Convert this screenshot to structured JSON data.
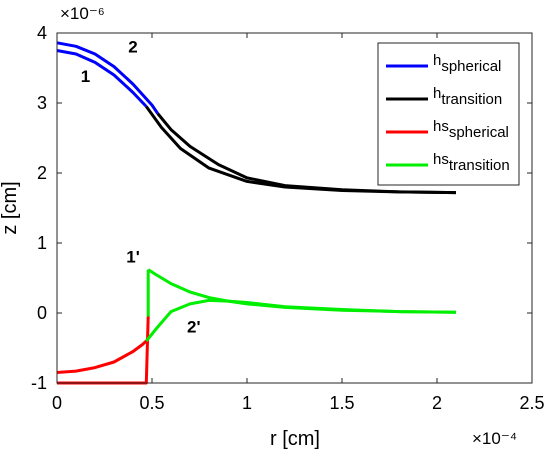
{
  "chart_data": {
    "type": "line",
    "xlabel": "r [cm]",
    "ylabel": "z [cm]",
    "x_exponent": "×10⁻⁴",
    "y_exponent": "×10⁻⁶",
    "xlim": [
      0,
      2.5
    ],
    "ylim": [
      -1,
      4
    ],
    "xticks": [
      "0",
      "0.5",
      "1",
      "1.5",
      "2",
      "2.5"
    ],
    "yticks": [
      "-1",
      "0",
      "1",
      "2",
      "3",
      "4"
    ],
    "grid": false,
    "legend_position": "top-right",
    "series": [
      {
        "name": "spherical",
        "legend_base": "h",
        "legend_sub": "spherical",
        "color": "#0000FF",
        "segments": [
          [
            [
              0,
              3.75
            ],
            [
              0.1,
              3.7
            ],
            [
              0.2,
              3.58
            ],
            [
              0.3,
              3.4
            ],
            [
              0.4,
              3.15
            ],
            [
              0.47,
              2.95
            ]
          ],
          [
            [
              0,
              3.86
            ],
            [
              0.1,
              3.81
            ],
            [
              0.2,
              3.7
            ],
            [
              0.3,
              3.52
            ],
            [
              0.4,
              3.27
            ],
            [
              0.5,
              2.97
            ],
            [
              0.53,
              2.85
            ]
          ]
        ]
      },
      {
        "name": "transition",
        "legend_base": "h",
        "legend_sub": "transition",
        "color": "#000000",
        "segments": [
          [
            [
              0.47,
              2.95
            ],
            [
              0.55,
              2.65
            ],
            [
              0.65,
              2.35
            ],
            [
              0.8,
              2.07
            ],
            [
              1.0,
              1.88
            ],
            [
              1.2,
              1.8
            ],
            [
              1.5,
              1.75
            ],
            [
              1.8,
              1.73
            ],
            [
              2.1,
              1.72
            ]
          ],
          [
            [
              0.53,
              2.85
            ],
            [
              0.6,
              2.62
            ],
            [
              0.7,
              2.38
            ],
            [
              0.85,
              2.12
            ],
            [
              1.0,
              1.93
            ],
            [
              1.2,
              1.82
            ],
            [
              1.5,
              1.76
            ],
            [
              1.8,
              1.73
            ],
            [
              2.1,
              1.72
            ]
          ]
        ]
      },
      {
        "name": "hs spherical",
        "legend_base": "hs",
        "legend_sub": "spherical",
        "color": "#FF0000",
        "segments": [
          [
            [
              0,
              -0.85
            ],
            [
              0.1,
              -0.83
            ],
            [
              0.2,
              -0.78
            ],
            [
              0.3,
              -0.7
            ],
            [
              0.4,
              -0.55
            ],
            [
              0.45,
              -0.45
            ],
            [
              0.47,
              -0.4
            ]
          ],
          [
            [
              0,
              -1.0
            ],
            [
              0.47,
              -1.0
            ],
            [
              0.475,
              -0.5
            ],
            [
              0.48,
              -0.05
            ]
          ]
        ]
      },
      {
        "name": "hs transition",
        "legend_base": "hs",
        "legend_sub": "transition",
        "color": "#00EE00",
        "segments": [
          [
            [
              0.48,
              0.62
            ],
            [
              0.52,
              0.55
            ],
            [
              0.6,
              0.42
            ],
            [
              0.7,
              0.3
            ],
            [
              0.8,
              0.22
            ],
            [
              0.9,
              0.17
            ],
            [
              1.0,
              0.13
            ],
            [
              1.2,
              0.08
            ],
            [
              1.5,
              0.04
            ],
            [
              1.8,
              0.02
            ],
            [
              2.1,
              0.01
            ]
          ],
          [
            [
              0.47,
              -0.4
            ],
            [
              0.53,
              -0.2
            ],
            [
              0.6,
              0.02
            ],
            [
              0.7,
              0.13
            ],
            [
              0.8,
              0.18
            ],
            [
              0.9,
              0.17
            ],
            [
              1.0,
              0.15
            ],
            [
              1.2,
              0.09
            ],
            [
              1.5,
              0.05
            ],
            [
              1.8,
              0.02
            ],
            [
              2.1,
              0.01
            ]
          ],
          [
            [
              0.48,
              -0.05
            ],
            [
              0.48,
              0.62
            ]
          ]
        ]
      }
    ],
    "annotations": [
      {
        "text": "1",
        "x": 0.15,
        "y": 3.3
      },
      {
        "text": "2",
        "x": 0.4,
        "y": 3.72
      },
      {
        "text": "1'",
        "x": 0.4,
        "y": 0.72
      },
      {
        "text": "2'",
        "x": 0.72,
        "y": -0.28
      }
    ]
  }
}
